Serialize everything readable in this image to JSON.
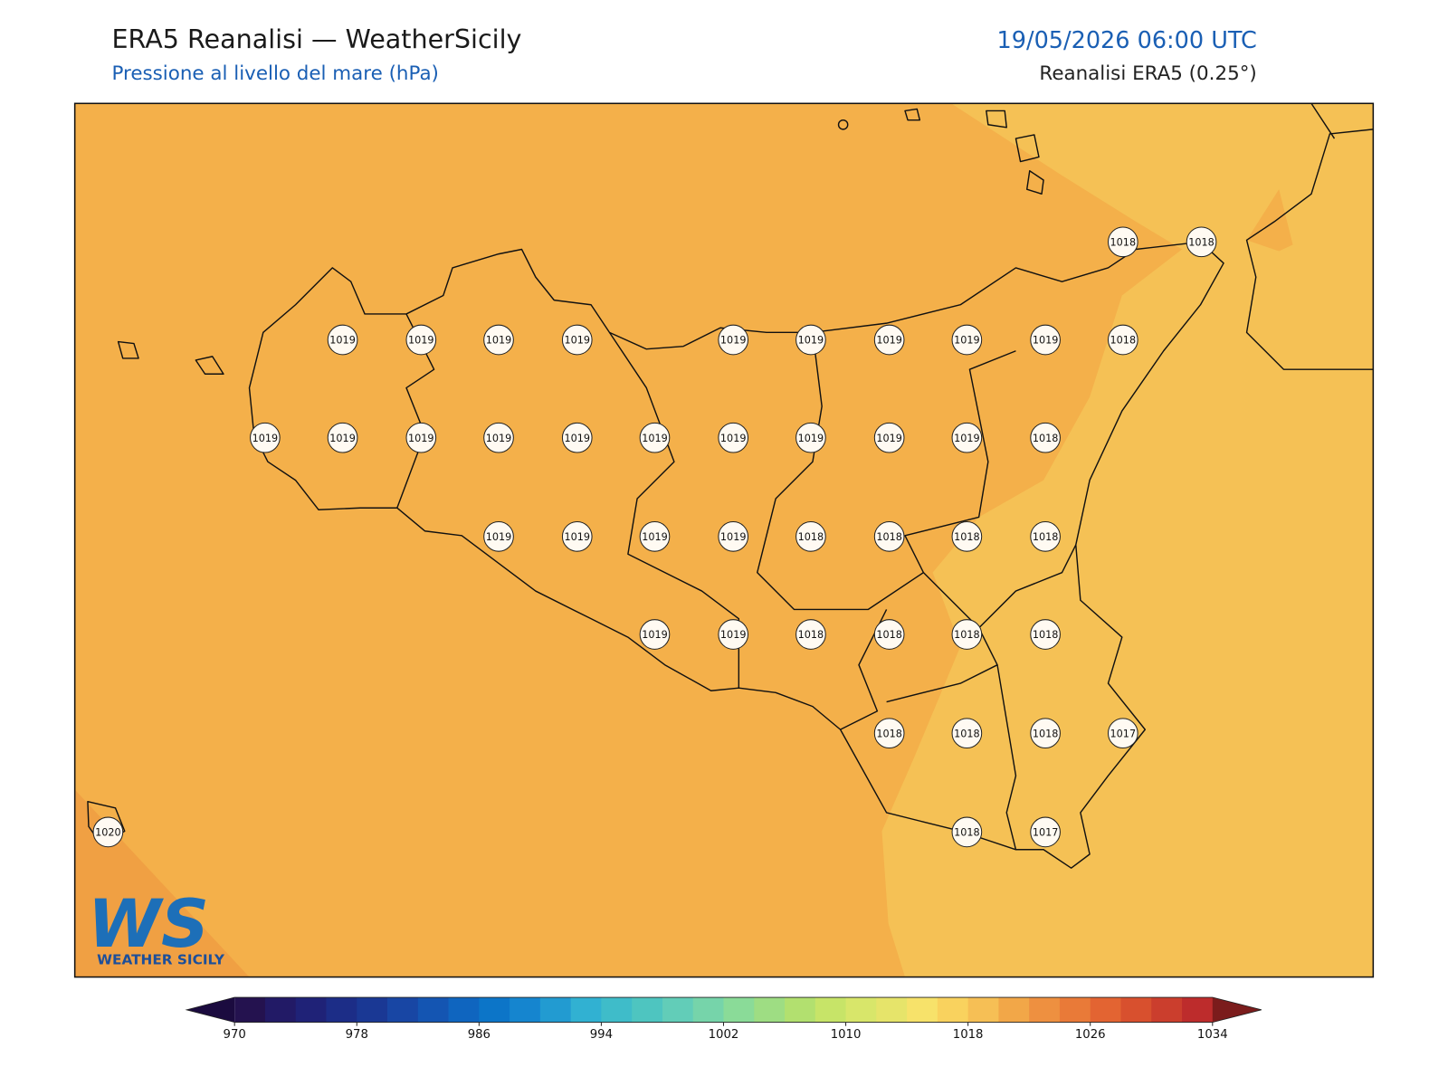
{
  "header": {
    "title": "ERA5 Reanalisi — WeatherSicily",
    "subtitle": "Pressione al livello del mare (hPa)",
    "datetime": "19/05/2026 06:00 UTC",
    "source": "Reanalisi ERA5 (0.25°)"
  },
  "stations": [
    1018,
    1018,
    1019,
    1019,
    1019,
    1019,
    1019,
    1019,
    1019,
    1019,
    1019,
    1018,
    1019,
    1019,
    1019,
    1019,
    1019,
    1019,
    1019,
    1019,
    1019,
    1019,
    1018,
    1019,
    1019,
    1019,
    1019,
    1018,
    1018,
    1018,
    1018,
    1019,
    1019,
    1018,
    1018,
    1018,
    1018,
    1018,
    1018,
    1018,
    1017,
    1020,
    1018,
    1017
  ],
  "colorbar": {
    "ticks": [
      970,
      978,
      986,
      994,
      1002,
      1010,
      1018,
      1026,
      1034
    ],
    "colors": [
      "#24124f",
      "#221a66",
      "#1f2277",
      "#1c2d87",
      "#1a3894",
      "#1846a4",
      "#1455b2",
      "#0f65bf",
      "#0c75c8",
      "#1585cf",
      "#229bd1",
      "#31b1d2",
      "#3fbcc9",
      "#4ec5c0",
      "#62cdb8",
      "#76d4aa",
      "#8adb98",
      "#9edd83",
      "#b2e06f",
      "#c7e468",
      "#d8e66a",
      "#e6e46a",
      "#f7e26a",
      "#f9d25e",
      "#f6bf55",
      "#f2a748",
      "#ee9040",
      "#e97a38",
      "#e36432",
      "#d8502e",
      "#cb3e2d",
      "#bd2c2c"
    ],
    "under_color": "#1b0b3f",
    "over_color": "#7b1c1c"
  },
  "logo": {
    "letters": "WS",
    "name": "WEATHER SICILY"
  }
}
